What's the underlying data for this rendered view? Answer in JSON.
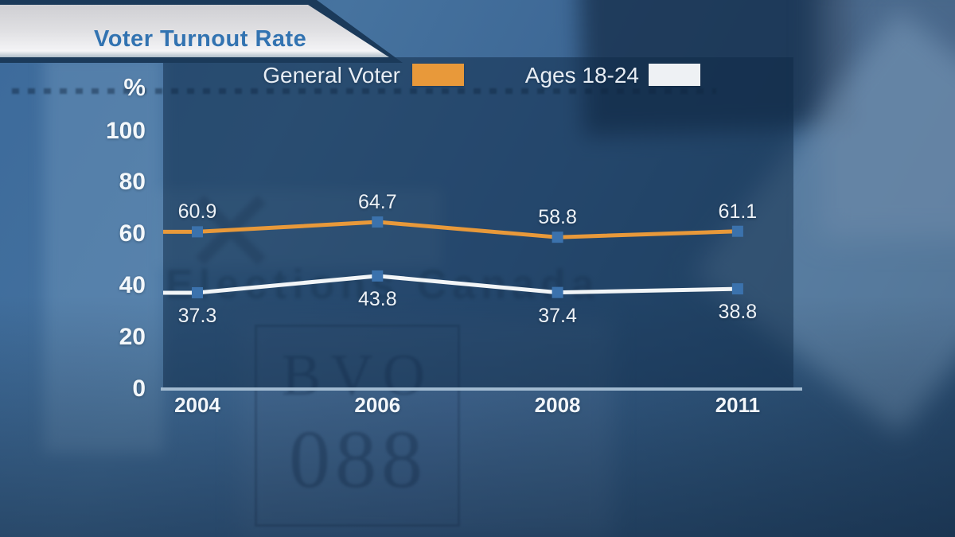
{
  "banner": {
    "title": "Voter Turnout Rate"
  },
  "legend": {
    "items": [
      {
        "label": "General Voter",
        "swatch": "#e8993a"
      },
      {
        "label": "Ages 18-24",
        "swatch": "#eef1f4"
      }
    ]
  },
  "y_axis": {
    "unit": "%",
    "ticks": [
      "100",
      "80",
      "60",
      "40",
      "20",
      "0"
    ]
  },
  "x_axis": {
    "ticks": [
      "2004",
      "2006",
      "2008",
      "2011"
    ]
  },
  "chart_data": {
    "type": "line",
    "title": "Voter Turnout Rate",
    "unit": "%",
    "categories": [
      "2004",
      "2006",
      "2008",
      "2011"
    ],
    "series": [
      {
        "name": "General Voter",
        "color": "#e8993a",
        "values": [
          60.9,
          64.7,
          58.8,
          61.1
        ],
        "label_position": "above"
      },
      {
        "name": "Ages 18-24",
        "color": "#f2f5f7",
        "values": [
          37.3,
          43.8,
          37.4,
          38.8
        ],
        "label_position": "below"
      }
    ],
    "ylim": [
      0,
      100
    ],
    "yticks": [
      100,
      80,
      60,
      40,
      20,
      0
    ],
    "grid": false,
    "legend_position": "top-center",
    "marker": "square",
    "marker_color": "#3b72ad",
    "marker_size": 14,
    "line_width": 5
  },
  "background": {
    "watermark": "Elections Canada",
    "stamp_line1": "BVO",
    "stamp_line2": "088"
  }
}
